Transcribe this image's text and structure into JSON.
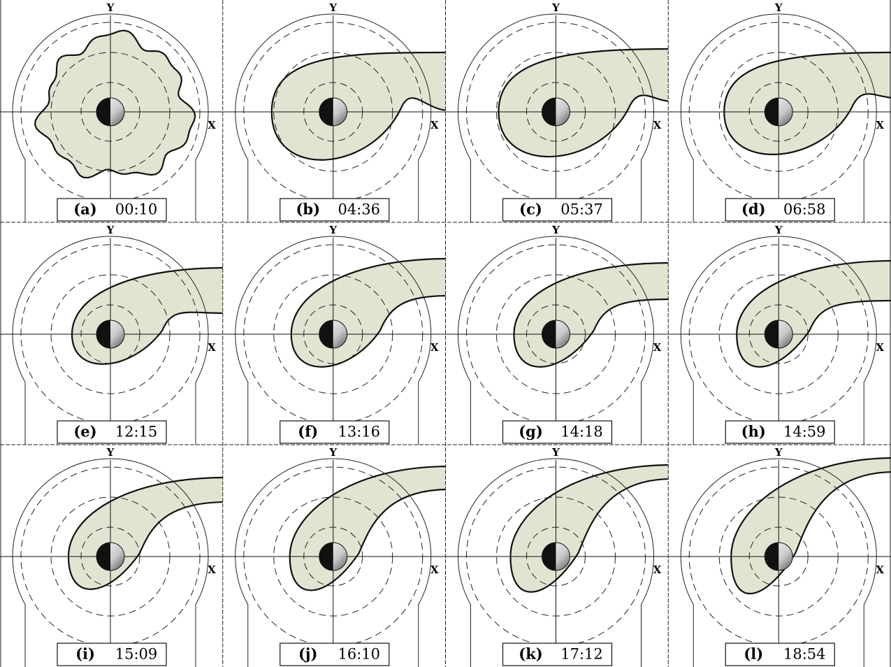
{
  "axis_labels": {
    "x": "X",
    "y": "Y"
  },
  "panels": [
    {
      "label": "(a)",
      "time": "00:10"
    },
    {
      "label": "(b)",
      "time": "04:36"
    },
    {
      "label": "(c)",
      "time": "05:37"
    },
    {
      "label": "(d)",
      "time": "06:58"
    },
    {
      "label": "(e)",
      "time": "12:15"
    },
    {
      "label": "(f)",
      "time": "13:16"
    },
    {
      "label": "(g)",
      "time": "14:18"
    },
    {
      "label": "(h)",
      "time": "14:59"
    },
    {
      "label": "(i)",
      "time": "15:09"
    },
    {
      "label": "(j)",
      "time": "16:10"
    },
    {
      "label": "(k)",
      "time": "17:12"
    },
    {
      "label": "(l)",
      "time": "18:54"
    }
  ]
}
